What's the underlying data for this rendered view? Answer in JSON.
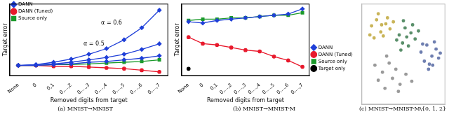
{
  "chart_data": [
    {
      "type": "line",
      "title": "(a) MNIST→MNIST",
      "x_label": "Removed digits from target",
      "y_label": "Target error",
      "categories": [
        "None",
        "0",
        "0,1",
        "0,...,2",
        "0,...,3",
        "0,...,4",
        "0,...,5",
        "0,...,6",
        "0,...,7"
      ],
      "ylim": [
        0,
        0.09
      ],
      "tick_labels": "x",
      "legend": "upper left",
      "grid": false,
      "series": [
        {
          "name": "DANN",
          "color": "#1f3fd8",
          "marker": "diamond",
          "line_style": "solid",
          "values": [
            0.013,
            0.014,
            0.017,
            0.021,
            0.027,
            0.034,
            0.045,
            0.06,
            0.082
          ]
        },
        {
          "name": "DANN",
          "color": "#1f3fd8",
          "marker": "diamond",
          "line_style": "solid",
          "values": [
            0.013,
            0.014,
            0.015,
            0.017,
            0.02,
            0.023,
            0.027,
            0.033,
            0.04
          ]
        },
        {
          "name": "DANN",
          "color": "#1f3fd8",
          "marker": "diamond",
          "line_style": "solid",
          "values": [
            0.013,
            0.013,
            0.014,
            0.015,
            0.017,
            0.018,
            0.02,
            0.022,
            0.025
          ]
        },
        {
          "name": "DANN (Tuned)",
          "color": "#e8192c",
          "marker": "circle",
          "line_style": "solid",
          "values": [
            0.013,
            0.013,
            0.012,
            0.012,
            0.011,
            0.01,
            0.009,
            0.007,
            0.005
          ]
        },
        {
          "name": "Source only",
          "color": "#1a9a2a",
          "marker": "square",
          "line_style": "solid",
          "values": [
            0.013,
            0.013,
            0.014,
            0.014,
            0.015,
            0.016,
            0.017,
            0.018,
            0.02
          ]
        }
      ],
      "annotations": [
        {
          "text": "α = 0.6",
          "x": "0,...,5",
          "y": 0.062
        },
        {
          "text": "α = 0.5",
          "x": "0,...,4",
          "y": 0.036
        }
      ]
    },
    {
      "type": "line",
      "title": "(b) MNIST→MNIST-M",
      "x_label": "Removed digits from target",
      "y_label": "Target error",
      "categories": [
        "None",
        "0",
        "0,1",
        "0,...,2",
        "0,...,3",
        "0,...,4",
        "0,...,5",
        "0,...,6",
        "0,...,7"
      ],
      "ylim": [
        0,
        0.56
      ],
      "tick_labels": "x",
      "legend": "right",
      "grid": false,
      "series": [
        {
          "name": "DANN",
          "color": "#1f3fd8",
          "marker": "diamond",
          "line_style": "solid",
          "values": [
            0.42,
            0.41,
            0.43,
            0.44,
            0.45,
            0.46,
            0.47,
            0.48,
            0.52
          ]
        },
        {
          "name": "DANN (Tuned)",
          "color": "#e8192c",
          "marker": "circle",
          "line_style": "solid",
          "values": [
            0.3,
            0.25,
            0.24,
            0.22,
            0.2,
            0.19,
            0.15,
            0.12,
            0.07
          ]
        },
        {
          "name": "Source only",
          "color": "#1a9a2a",
          "marker": "square",
          "line_style": "solid",
          "values": [
            0.43,
            0.44,
            0.44,
            0.45,
            0.45,
            0.46,
            0.47,
            0.47,
            0.49
          ]
        },
        {
          "name": "Target only",
          "color": "#000000",
          "marker": "circle",
          "line_style": "none",
          "values": [
            0.055,
            null,
            null,
            null,
            null,
            null,
            null,
            null,
            null
          ]
        }
      ]
    },
    {
      "type": "scatter",
      "title": "(c) MNIST→MNIST-M\\{0, 1, 2}",
      "xlim": [
        0,
        10
      ],
      "ylim": [
        0,
        10
      ],
      "tick_labels": false,
      "grid": false,
      "series": [
        {
          "color": "#c9b458",
          "marker": "circle",
          "x": [
            1.2,
            1.8,
            2.3,
            2.9,
            3.4,
            1.5,
            2.6,
            3.1,
            2.0,
            3.8,
            1.0,
            2.4
          ],
          "values": [
            7.8,
            8.4,
            7.2,
            8.0,
            7.5,
            6.6,
            6.8,
            8.6,
            9.0,
            8.2,
            6.9,
            7.9
          ]
        },
        {
          "color": "#5a8f6a",
          "marker": "circle",
          "x": [
            4.5,
            5.2,
            5.9,
            6.4,
            4.9,
            5.6,
            6.1,
            4.2,
            5.0,
            6.8,
            5.4,
            4.7
          ],
          "values": [
            6.9,
            7.6,
            7.1,
            6.5,
            6.1,
            5.8,
            7.9,
            6.4,
            8.3,
            7.3,
            6.7,
            5.4
          ]
        },
        {
          "color": "#6f7fb0",
          "marker": "circle",
          "x": [
            7.1,
            7.8,
            8.4,
            8.9,
            7.5,
            8.1,
            8.7,
            9.2,
            7.3,
            8.0,
            8.5,
            9.4
          ],
          "values": [
            5.2,
            5.9,
            4.8,
            5.5,
            4.3,
            4.0,
            6.2,
            4.6,
            6.0,
            3.5,
            3.9,
            5.1
          ]
        },
        {
          "color": "#9a9a9a",
          "marker": "circle",
          "x": [
            1.6,
            2.5,
            3.3,
            4.1,
            2.0,
            3.7,
            4.6,
            5.3,
            2.8,
            6.0,
            3.0,
            4.4
          ],
          "values": [
            3.9,
            3.2,
            4.1,
            3.5,
            2.4,
            2.6,
            2.0,
            3.0,
            1.6,
            2.3,
            4.8,
            1.3
          ]
        }
      ]
    }
  ]
}
